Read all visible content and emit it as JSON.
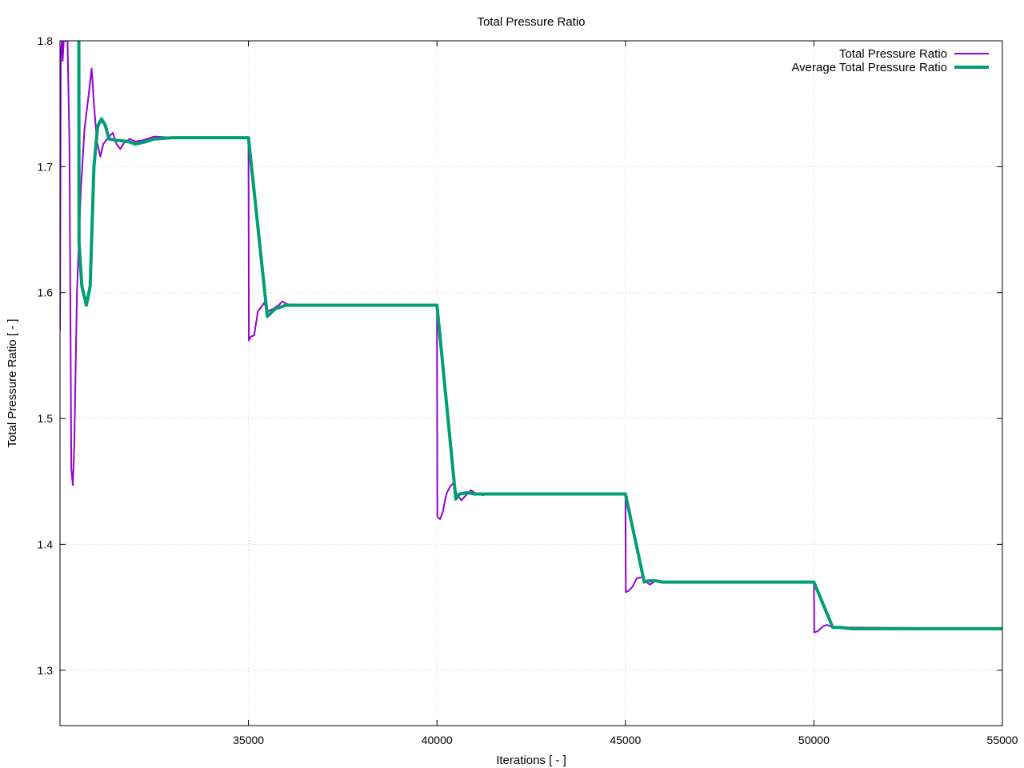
{
  "chart_data": {
    "type": "line",
    "title": "Total Pressure Ratio",
    "xlabel": "Iterations [ - ]",
    "ylabel": "Total Pressure Ratio [ - ]",
    "xlim": [
      30000,
      55000
    ],
    "ylim": [
      1.256,
      1.8
    ],
    "xticks": [
      35000,
      40000,
      45000,
      50000,
      55000
    ],
    "yticks": [
      1.3,
      1.4,
      1.5,
      1.6,
      1.7,
      1.8
    ],
    "grid": true,
    "legend_position": "top-right",
    "series": [
      {
        "name": "Total Pressure Ratio",
        "color": "#9400d3",
        "values": [
          [
            30000,
            1.57
          ],
          [
            30020,
            1.79
          ],
          [
            30050,
            1.8
          ],
          [
            30070,
            1.784
          ],
          [
            30100,
            1.8
          ],
          [
            30200,
            1.8
          ],
          [
            30250,
            1.72
          ],
          [
            30300,
            1.46
          ],
          [
            30340,
            1.447
          ],
          [
            30380,
            1.48
          ],
          [
            30450,
            1.6
          ],
          [
            30550,
            1.68
          ],
          [
            30650,
            1.73
          ],
          [
            30780,
            1.762
          ],
          [
            30840,
            1.778
          ],
          [
            30900,
            1.75
          ],
          [
            30980,
            1.72
          ],
          [
            31070,
            1.708
          ],
          [
            31150,
            1.718
          ],
          [
            31280,
            1.723
          ],
          [
            31400,
            1.727
          ],
          [
            31500,
            1.718
          ],
          [
            31600,
            1.714
          ],
          [
            31700,
            1.719
          ],
          [
            31850,
            1.722
          ],
          [
            32000,
            1.72
          ],
          [
            32200,
            1.721
          ],
          [
            32500,
            1.724
          ],
          [
            33000,
            1.723
          ],
          [
            35000,
            1.723
          ],
          [
            35010,
            1.562
          ],
          [
            35060,
            1.565
          ],
          [
            35150,
            1.566
          ],
          [
            35250,
            1.585
          ],
          [
            35350,
            1.589
          ],
          [
            35420,
            1.592
          ],
          [
            35500,
            1.585
          ],
          [
            35650,
            1.587
          ],
          [
            35800,
            1.59
          ],
          [
            35900,
            1.593
          ],
          [
            36000,
            1.591
          ],
          [
            36200,
            1.59
          ],
          [
            40000,
            1.59
          ],
          [
            40010,
            1.422
          ],
          [
            40080,
            1.42
          ],
          [
            40150,
            1.425
          ],
          [
            40250,
            1.44
          ],
          [
            40350,
            1.446
          ],
          [
            40450,
            1.449
          ],
          [
            40520,
            1.44
          ],
          [
            40650,
            1.435
          ],
          [
            40800,
            1.44
          ],
          [
            40900,
            1.443
          ],
          [
            41000,
            1.441
          ],
          [
            41200,
            1.439
          ],
          [
            41400,
            1.44
          ],
          [
            45000,
            1.44
          ],
          [
            45010,
            1.362
          ],
          [
            45080,
            1.363
          ],
          [
            45180,
            1.366
          ],
          [
            45300,
            1.373
          ],
          [
            45450,
            1.374
          ],
          [
            45560,
            1.37
          ],
          [
            45650,
            1.368
          ],
          [
            45800,
            1.371
          ],
          [
            46000,
            1.37
          ],
          [
            50000,
            1.37
          ],
          [
            50010,
            1.33
          ],
          [
            50100,
            1.331
          ],
          [
            50250,
            1.335
          ],
          [
            50350,
            1.336
          ],
          [
            50500,
            1.334
          ],
          [
            50650,
            1.334
          ],
          [
            50800,
            1.334
          ],
          [
            55000,
            1.333
          ]
        ]
      },
      {
        "name": "Average Total Pressure Ratio",
        "color": "#009e73",
        "values": [
          [
            30500,
            1.8
          ],
          [
            30505,
            1.64
          ],
          [
            30580,
            1.605
          ],
          [
            30700,
            1.59
          ],
          [
            30800,
            1.605
          ],
          [
            30900,
            1.7
          ],
          [
            31000,
            1.732
          ],
          [
            31100,
            1.738
          ],
          [
            31200,
            1.733
          ],
          [
            31300,
            1.722
          ],
          [
            31500,
            1.721
          ],
          [
            31800,
            1.72
          ],
          [
            32000,
            1.718
          ],
          [
            32300,
            1.72
          ],
          [
            32500,
            1.722
          ],
          [
            33000,
            1.723
          ],
          [
            35000,
            1.723
          ],
          [
            35500,
            1.581
          ],
          [
            35700,
            1.587
          ],
          [
            36000,
            1.59
          ],
          [
            36500,
            1.59
          ],
          [
            40000,
            1.59
          ],
          [
            40500,
            1.436
          ],
          [
            40600,
            1.44
          ],
          [
            40800,
            1.441
          ],
          [
            41000,
            1.44
          ],
          [
            41500,
            1.44
          ],
          [
            45000,
            1.44
          ],
          [
            45500,
            1.37
          ],
          [
            45600,
            1.371
          ],
          [
            45800,
            1.371
          ],
          [
            46000,
            1.37
          ],
          [
            50000,
            1.37
          ],
          [
            50500,
            1.334
          ],
          [
            50700,
            1.334
          ],
          [
            51000,
            1.333
          ],
          [
            55000,
            1.333
          ]
        ]
      }
    ]
  }
}
